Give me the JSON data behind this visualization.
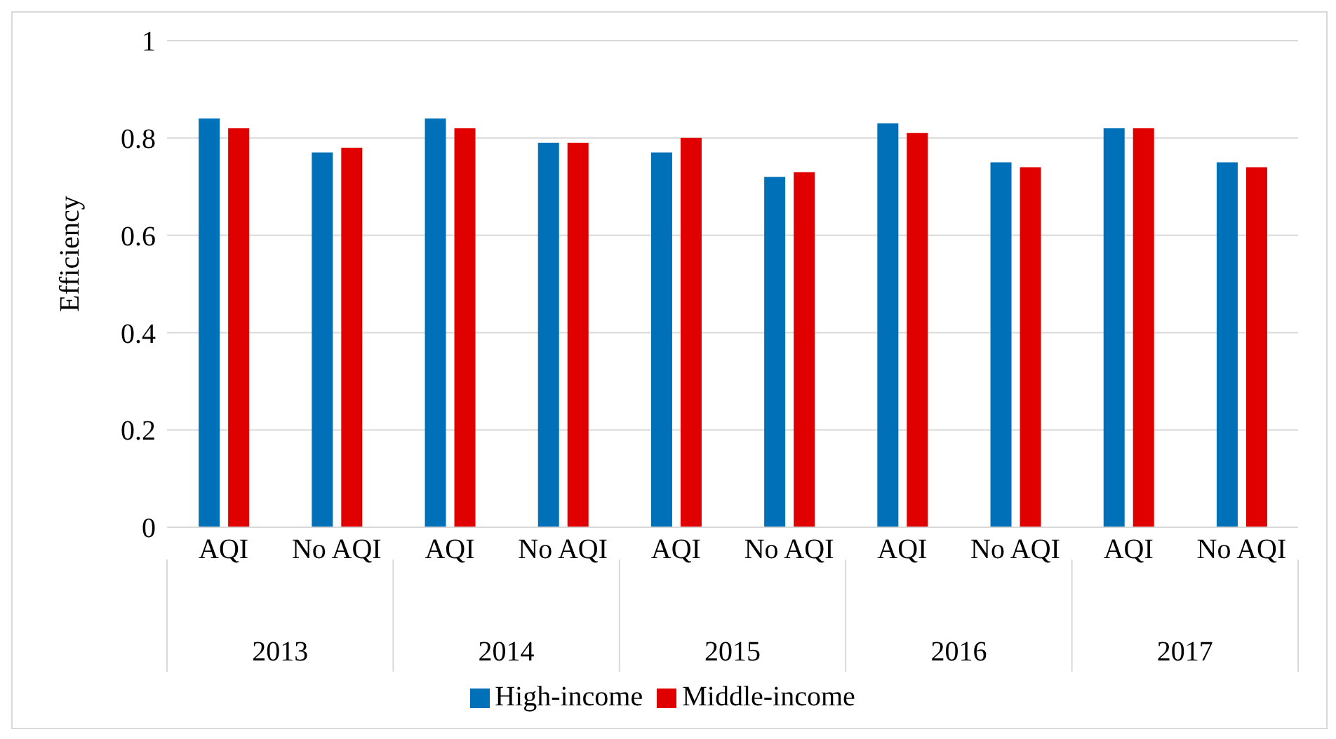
{
  "chart_data": {
    "type": "bar",
    "ylabel": "Efficiency",
    "categories": [
      "AQI",
      "No AQI",
      "AQI",
      "No AQI",
      "AQI",
      "No AQI",
      "AQI",
      "No AQI",
      "AQI",
      "No AQI"
    ],
    "annotations": [
      "2013",
      "2014",
      "2015",
      "2016",
      "2017"
    ],
    "series": [
      {
        "name": "High-income",
        "color": "#0070b8",
        "values": [
          0.84,
          0.77,
          0.84,
          0.79,
          0.77,
          0.72,
          0.83,
          0.75,
          0.82,
          0.75
        ]
      },
      {
        "name": "Middle-income",
        "color": "#e00000",
        "values": [
          0.82,
          0.78,
          0.82,
          0.79,
          0.8,
          0.73,
          0.81,
          0.74,
          0.82,
          0.74
        ]
      }
    ],
    "ylim": [
      0,
      1
    ],
    "yticks": [
      0,
      0.2,
      0.4,
      0.6,
      0.8,
      1
    ],
    "grid": "y",
    "legend": "bottom"
  }
}
